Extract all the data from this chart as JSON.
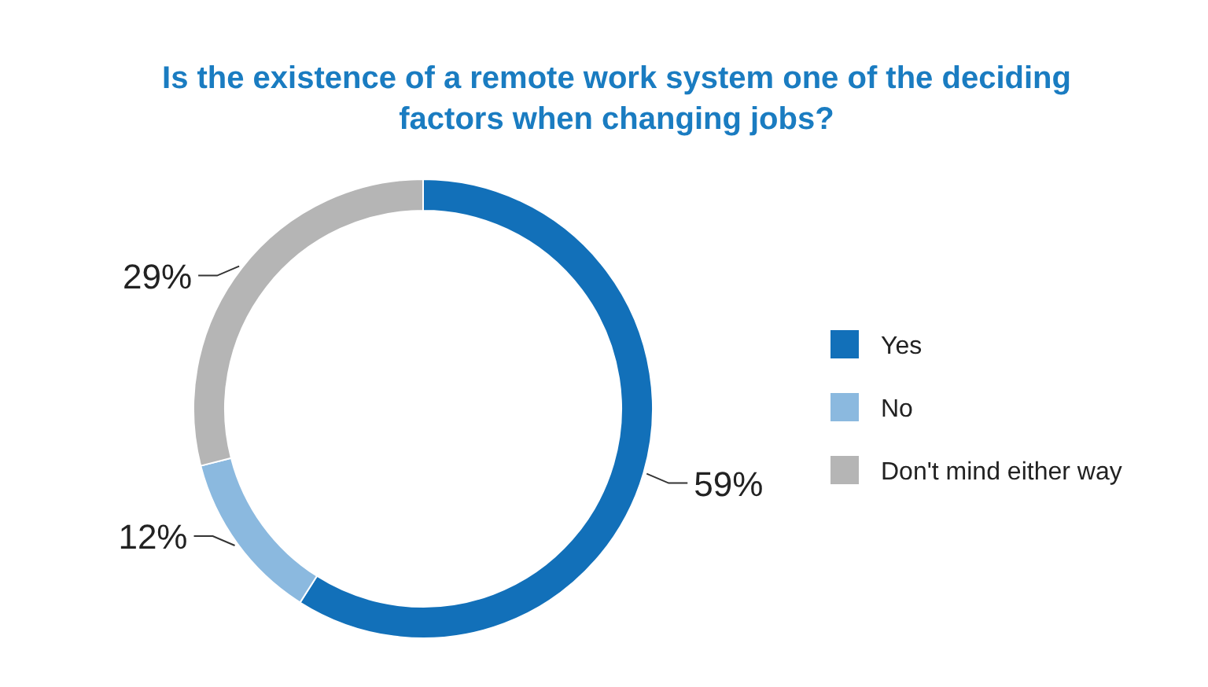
{
  "chart_data": {
    "type": "donut",
    "title": "Is the existence of a remote work system one of the deciding factors when changing jobs?",
    "categories": [
      "Yes",
      "No",
      "Don't mind either way"
    ],
    "values": [
      59,
      12,
      29
    ],
    "colors": [
      "#1270b9",
      "#8bb9df",
      "#b5b5b5"
    ],
    "value_labels": [
      "59%",
      "12%",
      "29%"
    ],
    "legend": "right"
  }
}
